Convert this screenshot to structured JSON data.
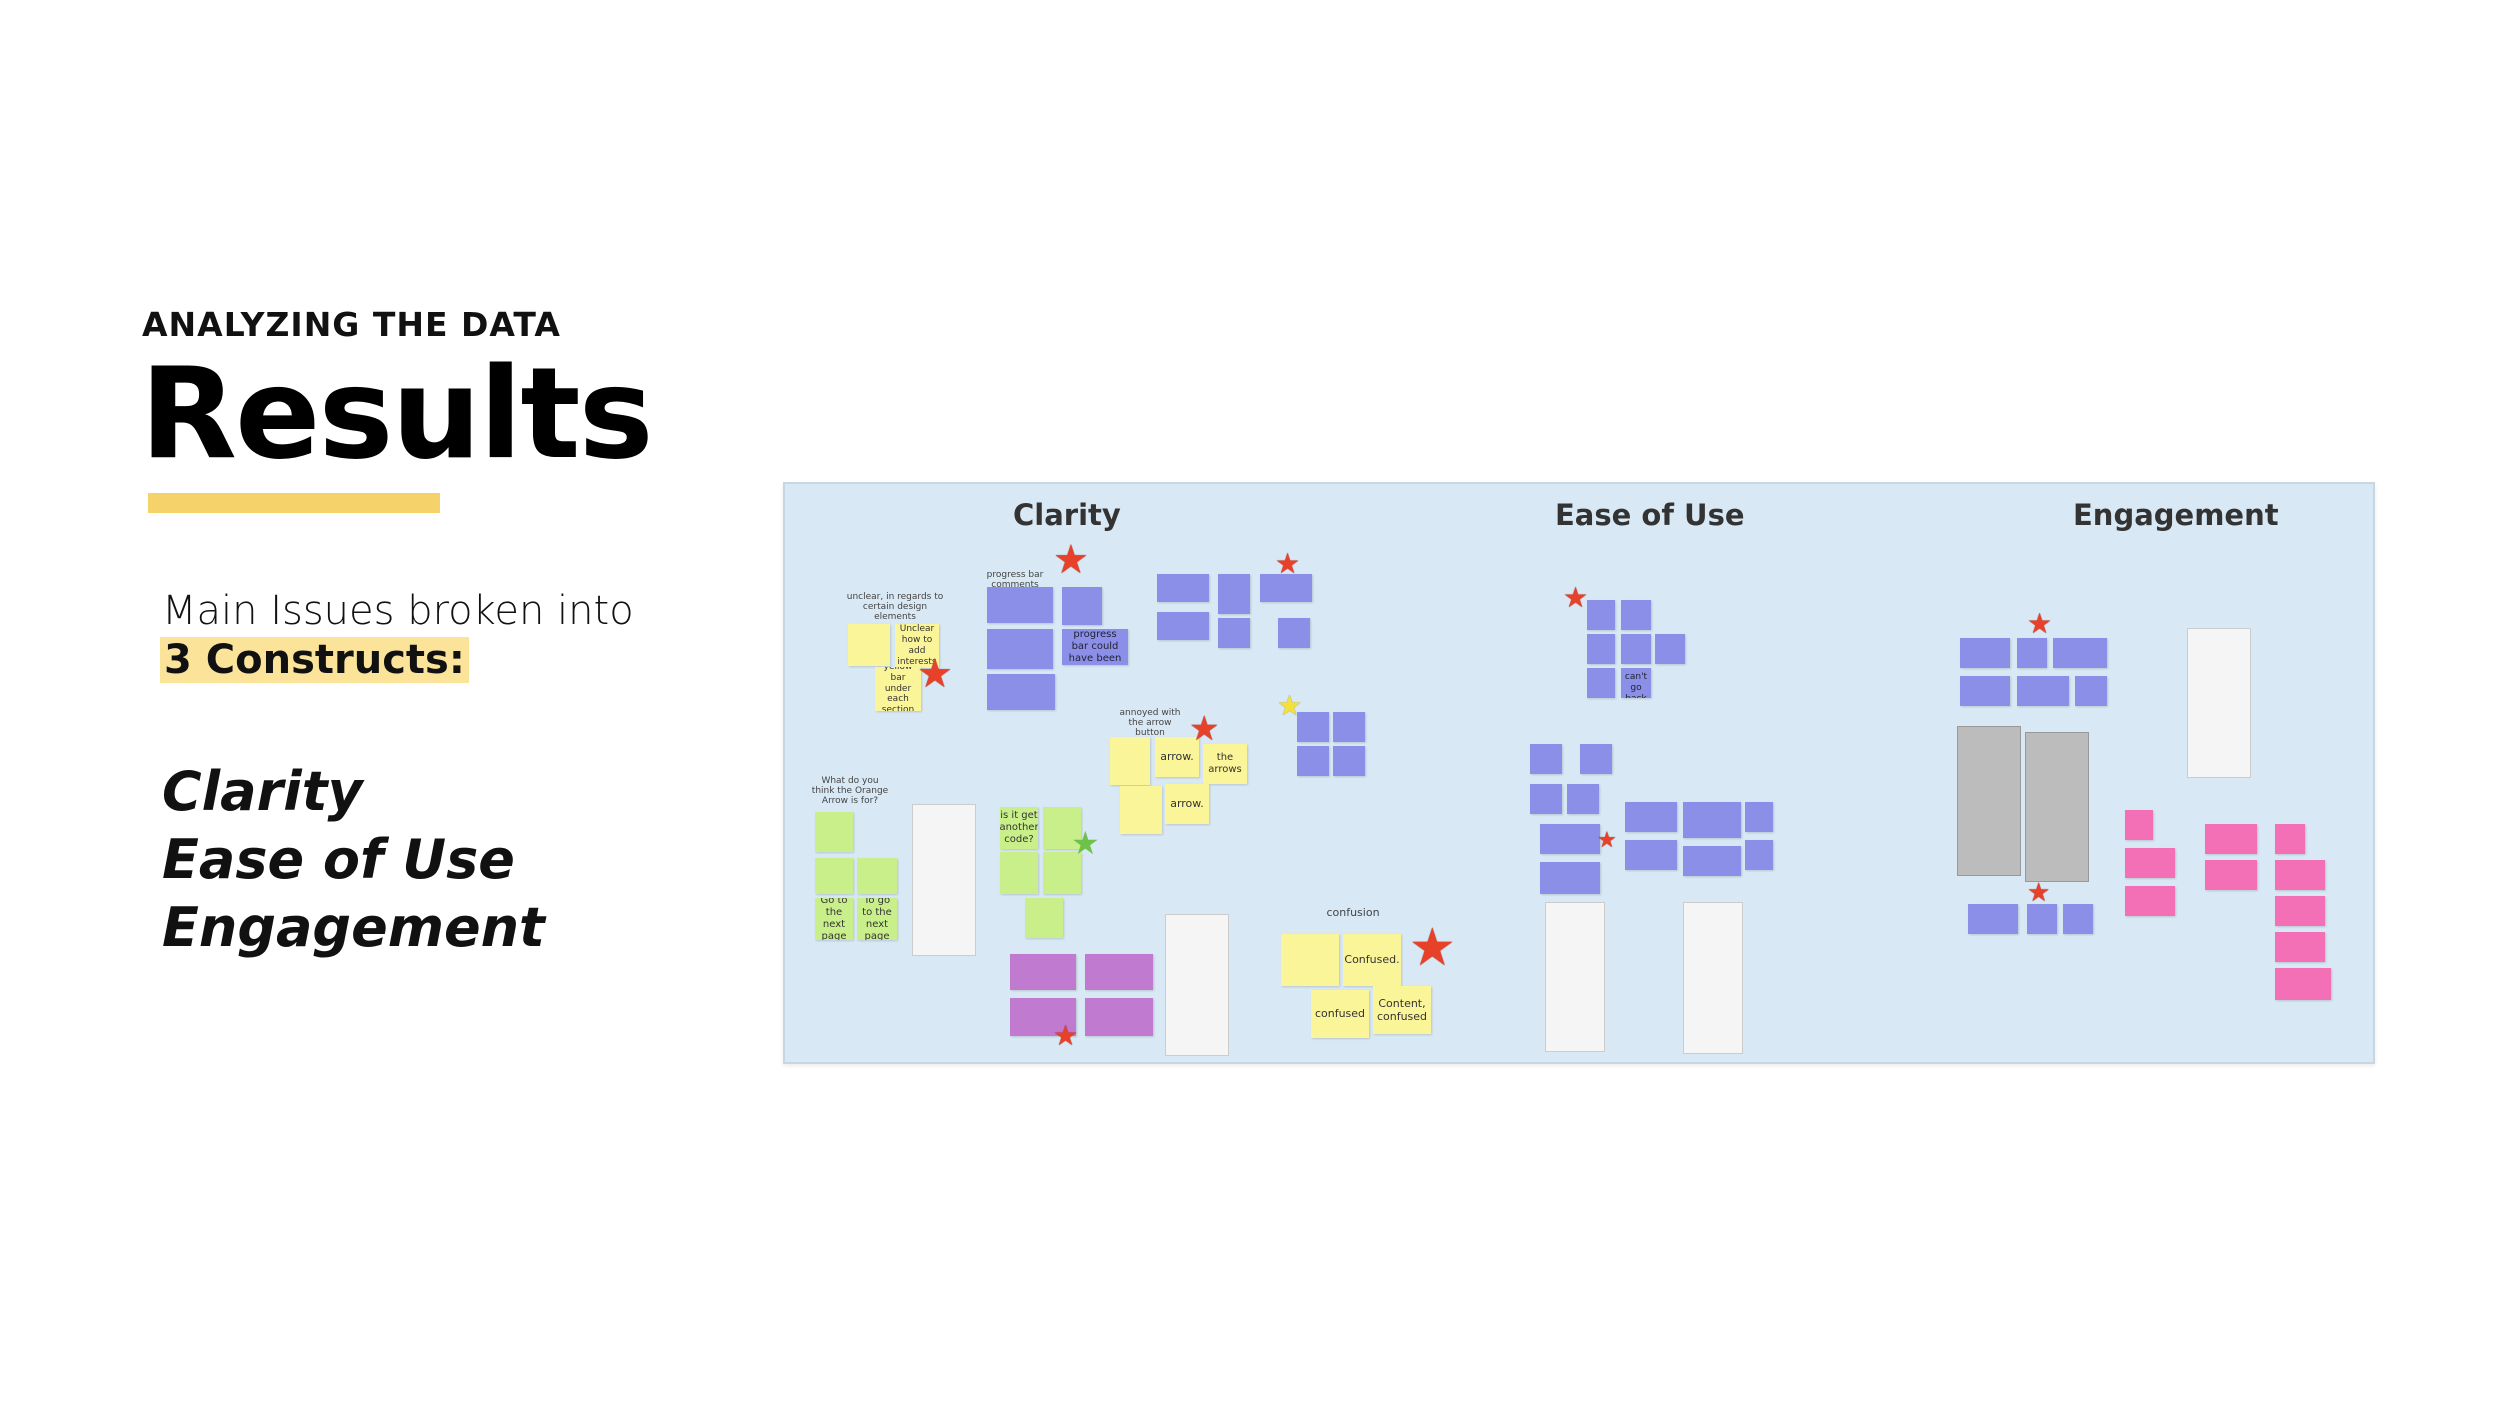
{
  "header": {
    "eyebrow": "ANALYZING THE DATA",
    "title": "Results"
  },
  "intro": {
    "line1": "Main Issues broken into",
    "highlight": "3 Constructs:"
  },
  "constructs": [
    "Clarity",
    "Ease of Use",
    "Engagement"
  ],
  "board": {
    "columns": [
      "Clarity",
      "Ease of Use",
      "Engagement"
    ],
    "labels": {
      "unclear": "unclear, in regards to certain design elements",
      "progress": "progress bar comments",
      "annoyed": "annoyed with the arrow button",
      "orange": "What do you think the Orange Arrow is for?",
      "confusion": "confusion"
    },
    "notes": {
      "unclear_add": "Unclear how to add interests",
      "yellow_bar": "The yellow bar under each section title",
      "progress_one": "The progress bar could have been just one",
      "arrow1": "arrow.",
      "arrow2": "the arrows",
      "arrow3": "arrow.",
      "code": "is it get another code?",
      "goto1": "Go to the next page",
      "goto2": "To go to the next page",
      "confused": "Confused.",
      "confused2": "confused",
      "content_confused": "Content, confused",
      "go_back": "I can't go back"
    }
  }
}
